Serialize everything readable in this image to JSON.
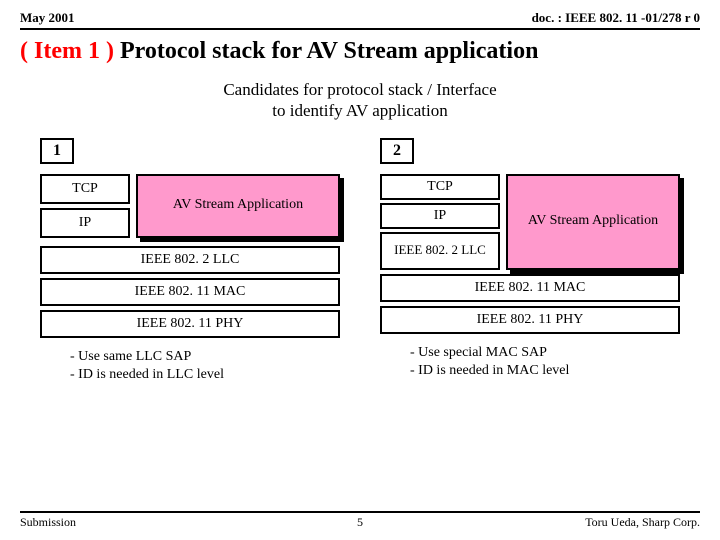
{
  "header": {
    "date": "May 2001",
    "doc": "doc. : IEEE 802. 11 -01/278 r 0"
  },
  "title": {
    "prefix": "( Item 1 ) ",
    "main": "Protocol stack for AV Stream application"
  },
  "subtitle_l1": "Candidates for protocol stack / Interface",
  "subtitle_l2": "to identify AV application",
  "stack1": {
    "num": "1",
    "tcp": "TCP",
    "ip": "IP",
    "av": "AV Stream Application",
    "llc": "IEEE 802. 2 LLC",
    "mac": "IEEE 802. 11 MAC",
    "phy": "IEEE 802. 11 PHY",
    "note1": "- Use same LLC SAP",
    "note2": "- ID is needed in LLC level"
  },
  "stack2": {
    "num": "2",
    "tcp": "TCP",
    "ip": "IP",
    "llc": "IEEE 802. 2 LLC",
    "av": "AV Stream Application",
    "mac": "IEEE 802. 11 MAC",
    "phy": "IEEE 802. 11 PHY",
    "note1": "- Use special MAC SAP",
    "note2": "- ID is needed in MAC level"
  },
  "footer": {
    "left": "Submission",
    "page": "5",
    "right": "Toru Ueda, Sharp Corp."
  },
  "colors": {
    "pink": "#ff99cc",
    "red": "#ff0000"
  }
}
